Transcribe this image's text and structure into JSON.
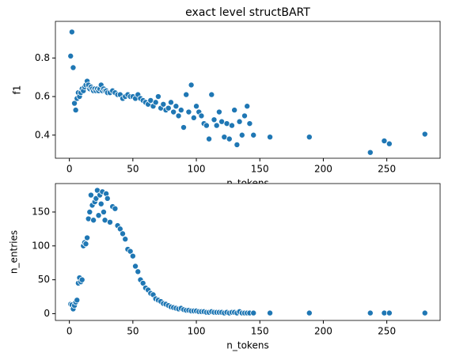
{
  "chart_data": [
    {
      "type": "scatter",
      "title": "exact level structBART",
      "xlabel": "n_tokens",
      "ylabel": "f1",
      "color": "#1f77b4",
      "x": [
        1,
        2,
        3,
        4,
        5,
        6,
        7,
        8,
        9,
        10,
        11,
        12,
        13,
        14,
        15,
        16,
        17,
        18,
        19,
        20,
        21,
        22,
        23,
        24,
        25,
        26,
        27,
        28,
        29,
        30,
        32,
        34,
        36,
        38,
        40,
        42,
        44,
        46,
        48,
        50,
        52,
        54,
        56,
        58,
        60,
        62,
        64,
        66,
        68,
        70,
        72,
        74,
        76,
        78,
        80,
        82,
        84,
        86,
        88,
        90,
        92,
        94,
        96,
        98,
        100,
        102,
        104,
        106,
        108,
        110,
        112,
        114,
        116,
        118,
        120,
        122,
        124,
        126,
        128,
        130,
        132,
        134,
        136,
        138,
        140,
        142,
        145,
        158,
        189,
        237,
        248,
        252,
        280
      ],
      "values": [
        0.81,
        0.935,
        0.75,
        0.565,
        0.53,
        0.59,
        0.62,
        0.6,
        0.62,
        0.64,
        0.63,
        0.65,
        0.66,
        0.68,
        0.66,
        0.64,
        0.65,
        0.64,
        0.63,
        0.64,
        0.63,
        0.64,
        0.63,
        0.64,
        0.66,
        0.63,
        0.64,
        0.63,
        0.63,
        0.62,
        0.62,
        0.63,
        0.62,
        0.61,
        0.61,
        0.59,
        0.6,
        0.61,
        0.6,
        0.6,
        0.59,
        0.61,
        0.59,
        0.58,
        0.57,
        0.56,
        0.58,
        0.55,
        0.57,
        0.6,
        0.54,
        0.56,
        0.53,
        0.54,
        0.57,
        0.52,
        0.55,
        0.5,
        0.53,
        0.44,
        0.61,
        0.52,
        0.66,
        0.49,
        0.55,
        0.52,
        0.5,
        0.46,
        0.45,
        0.38,
        0.61,
        0.48,
        0.45,
        0.52,
        0.47,
        0.39,
        0.46,
        0.38,
        0.45,
        0.53,
        0.35,
        0.47,
        0.4,
        0.5,
        0.55,
        0.46,
        0.4,
        0.39,
        0.39,
        0.31,
        0.37,
        0.355,
        0.405
      ],
      "xlim": [
        -11,
        292
      ],
      "ylim": [
        0.28,
        0.99
      ],
      "xticks": [
        0,
        50,
        100,
        150,
        200,
        250
      ],
      "yticks": [
        0.4,
        0.6,
        0.8
      ]
    },
    {
      "type": "scatter",
      "xlabel": "n_tokens",
      "ylabel": "n_entries",
      "color": "#1f77b4",
      "x": [
        1,
        2,
        3,
        4,
        5,
        6,
        7,
        8,
        9,
        10,
        11,
        12,
        13,
        14,
        15,
        16,
        17,
        18,
        19,
        20,
        21,
        22,
        23,
        24,
        25,
        26,
        27,
        28,
        29,
        30,
        32,
        34,
        36,
        38,
        40,
        42,
        44,
        46,
        48,
        50,
        52,
        54,
        56,
        58,
        60,
        62,
        64,
        66,
        68,
        70,
        72,
        74,
        76,
        78,
        80,
        82,
        84,
        86,
        88,
        90,
        92,
        94,
        96,
        98,
        100,
        102,
        104,
        106,
        108,
        110,
        112,
        114,
        116,
        118,
        120,
        122,
        124,
        126,
        128,
        130,
        132,
        134,
        136,
        138,
        140,
        142,
        145,
        158,
        189,
        237,
        248,
        252,
        280
      ],
      "values": [
        14,
        13,
        7,
        12,
        17,
        20,
        45,
        53,
        47,
        50,
        100,
        105,
        103,
        112,
        140,
        150,
        175,
        160,
        138,
        165,
        170,
        182,
        145,
        175,
        162,
        180,
        150,
        138,
        177,
        170,
        135,
        158,
        155,
        130,
        125,
        118,
        110,
        95,
        92,
        85,
        70,
        62,
        50,
        45,
        38,
        35,
        30,
        28,
        22,
        20,
        18,
        15,
        14,
        12,
        10,
        9,
        8,
        7,
        8,
        6,
        5,
        5,
        4,
        4,
        4,
        3,
        3,
        3,
        2,
        2,
        3,
        2,
        2,
        2,
        2,
        1,
        2,
        1,
        2,
        2,
        1,
        3,
        1,
        1,
        1,
        1,
        1,
        1,
        1,
        1,
        1,
        1,
        1
      ],
      "xlim": [
        -11,
        292
      ],
      "ylim": [
        -10,
        192
      ],
      "xticks": [
        0,
        50,
        100,
        150,
        200,
        250
      ],
      "yticks": [
        0,
        50,
        100,
        150
      ]
    }
  ]
}
